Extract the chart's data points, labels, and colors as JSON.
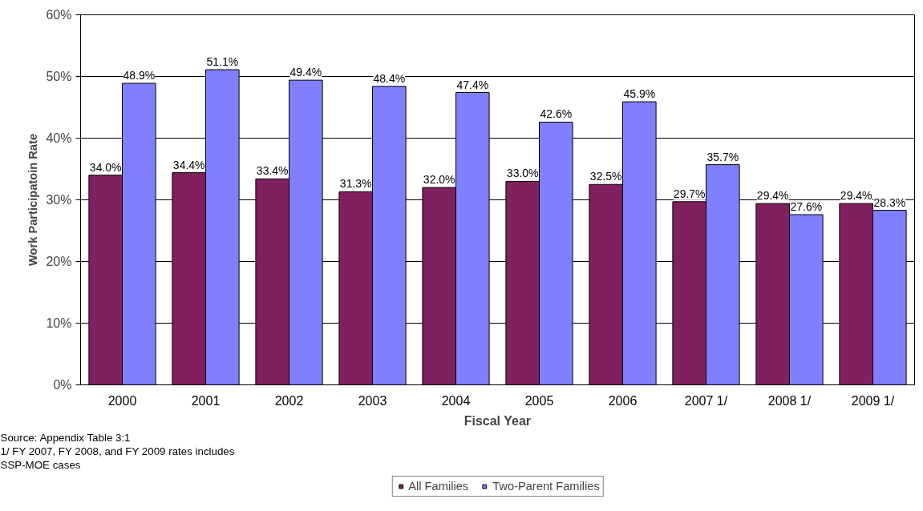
{
  "chart_data": {
    "type": "bar",
    "xlabel": "Fiscal Year",
    "ylabel": "Work Participatoin Rate",
    "categories": [
      "2000",
      "2001",
      "2002",
      "2003",
      "2004",
      "2005",
      "2006",
      "2007 1/",
      "2008 1/",
      "2009 1/"
    ],
    "series": [
      {
        "name": "All Families",
        "color": "#80205f",
        "values": [
          34.0,
          34.4,
          33.4,
          31.3,
          32.0,
          33.0,
          32.5,
          29.7,
          29.4,
          29.4
        ],
        "value_labels": [
          "34.0%",
          "34.4%",
          "33.4%",
          "31.3%",
          "32.0%",
          "33.0%",
          "32.5%",
          "29.7%",
          "29.4%",
          "29.4%"
        ]
      },
      {
        "name": "Two-Parent Families",
        "color": "#8080ff",
        "values": [
          48.9,
          51.1,
          49.4,
          48.4,
          47.4,
          42.6,
          45.9,
          35.7,
          27.6,
          28.3
        ],
        "value_labels": [
          "48.9%",
          "51.1%",
          "49.4%",
          "48.4%",
          "47.4%",
          "42.6%",
          "45.9%",
          "35.7%",
          "27.6%",
          "28.3%"
        ]
      }
    ],
    "ylim": [
      0,
      60
    ],
    "yticks": [
      {
        "value": 0,
        "label": "0%"
      },
      {
        "value": 10,
        "label": "10%"
      },
      {
        "value": 20,
        "label": "20%"
      },
      {
        "value": 30,
        "label": "30%"
      },
      {
        "value": 40,
        "label": "40%"
      },
      {
        "value": 50,
        "label": "50%"
      },
      {
        "value": 60,
        "label": "60%"
      }
    ],
    "grid": "y",
    "legend": "bottom",
    "annotations": [
      "Source: Appendix Table 3:1",
      "1/ FY 2007, FY 2008, and FY 2009 rates includes SSP-MOE cases"
    ]
  }
}
